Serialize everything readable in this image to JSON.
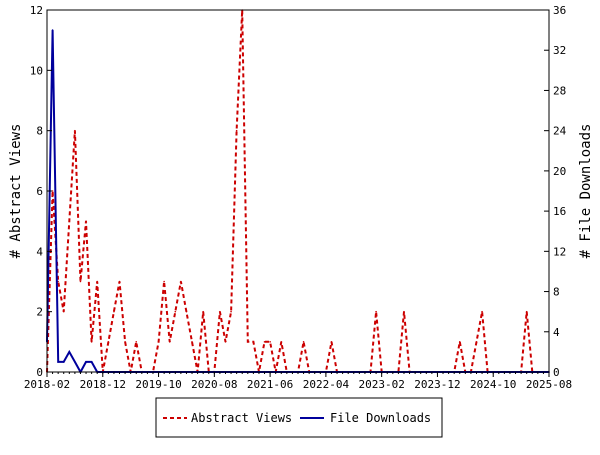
{
  "chart_data": {
    "type": "line",
    "title": "",
    "xlabel": "",
    "ylabel_left": "# Abstract Views",
    "ylabel_right": "# File Downloads",
    "ylim_left": [
      0,
      12
    ],
    "ylim_right": [
      0,
      36
    ],
    "yticks_left": [
      0,
      2,
      4,
      6,
      8,
      10,
      12
    ],
    "yticks_right": [
      0,
      4,
      8,
      12,
      16,
      20,
      24,
      28,
      32,
      36
    ],
    "xlim": [
      "2018-02",
      "2025-08"
    ],
    "xticks": [
      "2018-02",
      "2018-12",
      "2019-10",
      "2020-08",
      "2021-06",
      "2022-04",
      "2023-02",
      "2023-12",
      "2024-10",
      "2025-08"
    ],
    "grid": false,
    "legend": {
      "placement": "bottom"
    },
    "series": [
      {
        "name": "Abstract Views",
        "axis": "left",
        "style": "dashed",
        "color": "#cc0000",
        "points": [
          [
            "2018-02",
            0
          ],
          [
            "2018-03",
            6
          ],
          [
            "2018-04",
            3
          ],
          [
            "2018-05",
            2
          ],
          [
            "2018-06",
            5
          ],
          [
            "2018-07",
            8
          ],
          [
            "2018-08",
            3
          ],
          [
            "2018-09",
            5
          ],
          [
            "2018-10",
            1
          ],
          [
            "2018-11",
            3
          ],
          [
            "2018-12",
            0
          ],
          [
            "2019-01",
            1
          ],
          [
            "2019-02",
            2
          ],
          [
            "2019-03",
            3
          ],
          [
            "2019-04",
            1
          ],
          [
            "2019-05",
            0
          ],
          [
            "2019-06",
            1
          ],
          [
            "2019-07",
            0
          ],
          [
            "2019-08",
            0
          ],
          [
            "2019-09",
            0
          ],
          [
            "2019-10",
            1
          ],
          [
            "2019-11",
            3
          ],
          [
            "2019-12",
            1
          ],
          [
            "2020-01",
            2
          ],
          [
            "2020-02",
            3
          ],
          [
            "2020-03",
            2
          ],
          [
            "2020-04",
            1
          ],
          [
            "2020-05",
            0
          ],
          [
            "2020-06",
            2
          ],
          [
            "2020-07",
            0
          ],
          [
            "2020-08",
            0
          ],
          [
            "2020-09",
            2
          ],
          [
            "2020-10",
            1
          ],
          [
            "2020-11",
            2
          ],
          [
            "2020-12",
            8
          ],
          [
            "2021-01",
            12
          ],
          [
            "2021-02",
            1
          ],
          [
            "2021-03",
            1
          ],
          [
            "2021-04",
            0
          ],
          [
            "2021-05",
            1
          ],
          [
            "2021-06",
            1
          ],
          [
            "2021-07",
            0
          ],
          [
            "2021-08",
            1
          ],
          [
            "2021-09",
            0
          ],
          [
            "2021-10",
            0
          ],
          [
            "2021-11",
            0
          ],
          [
            "2021-12",
            1
          ],
          [
            "2022-01",
            0
          ],
          [
            "2022-02",
            0
          ],
          [
            "2022-03",
            0
          ],
          [
            "2022-04",
            0
          ],
          [
            "2022-05",
            1
          ],
          [
            "2022-06",
            0
          ],
          [
            "2022-07",
            0
          ],
          [
            "2022-08",
            0
          ],
          [
            "2022-09",
            0
          ],
          [
            "2022-10",
            0
          ],
          [
            "2022-11",
            0
          ],
          [
            "2022-12",
            0
          ],
          [
            "2023-01",
            2
          ],
          [
            "2023-02",
            0
          ],
          [
            "2023-03",
            0
          ],
          [
            "2023-04",
            0
          ],
          [
            "2023-05",
            0
          ],
          [
            "2023-06",
            2
          ],
          [
            "2023-07",
            0
          ],
          [
            "2023-08",
            0
          ],
          [
            "2023-09",
            0
          ],
          [
            "2023-10",
            0
          ],
          [
            "2023-11",
            0
          ],
          [
            "2023-12",
            0
          ],
          [
            "2024-01",
            0
          ],
          [
            "2024-02",
            0
          ],
          [
            "2024-03",
            0
          ],
          [
            "2024-04",
            1
          ],
          [
            "2024-05",
            0
          ],
          [
            "2024-06",
            0
          ],
          [
            "2024-07",
            1
          ],
          [
            "2024-08",
            2
          ],
          [
            "2024-09",
            0
          ],
          [
            "2024-10",
            0
          ],
          [
            "2024-11",
            0
          ],
          [
            "2024-12",
            0
          ],
          [
            "2025-01",
            0
          ],
          [
            "2025-02",
            0
          ],
          [
            "2025-03",
            0
          ],
          [
            "2025-04",
            2
          ],
          [
            "2025-05",
            0
          ],
          [
            "2025-06",
            0
          ],
          [
            "2025-07",
            0
          ],
          [
            "2025-08",
            0
          ]
        ]
      },
      {
        "name": "File Downloads",
        "axis": "right",
        "style": "solid",
        "color": "#00009c",
        "points": [
          [
            "2018-02",
            3
          ],
          [
            "2018-03",
            34
          ],
          [
            "2018-04",
            1
          ],
          [
            "2018-05",
            1
          ],
          [
            "2018-06",
            2
          ],
          [
            "2018-07",
            1
          ],
          [
            "2018-08",
            0
          ],
          [
            "2018-09",
            1
          ],
          [
            "2018-10",
            1
          ],
          [
            "2018-11",
            0
          ],
          [
            "2018-12",
            0
          ],
          [
            "2019-01",
            0
          ],
          [
            "2019-06",
            0
          ],
          [
            "2020-01",
            0
          ],
          [
            "2020-08",
            0
          ],
          [
            "2021-06",
            0
          ],
          [
            "2022-04",
            0
          ],
          [
            "2023-02",
            0
          ],
          [
            "2023-12",
            0
          ],
          [
            "2024-10",
            0
          ],
          [
            "2025-08",
            0
          ]
        ]
      }
    ]
  }
}
